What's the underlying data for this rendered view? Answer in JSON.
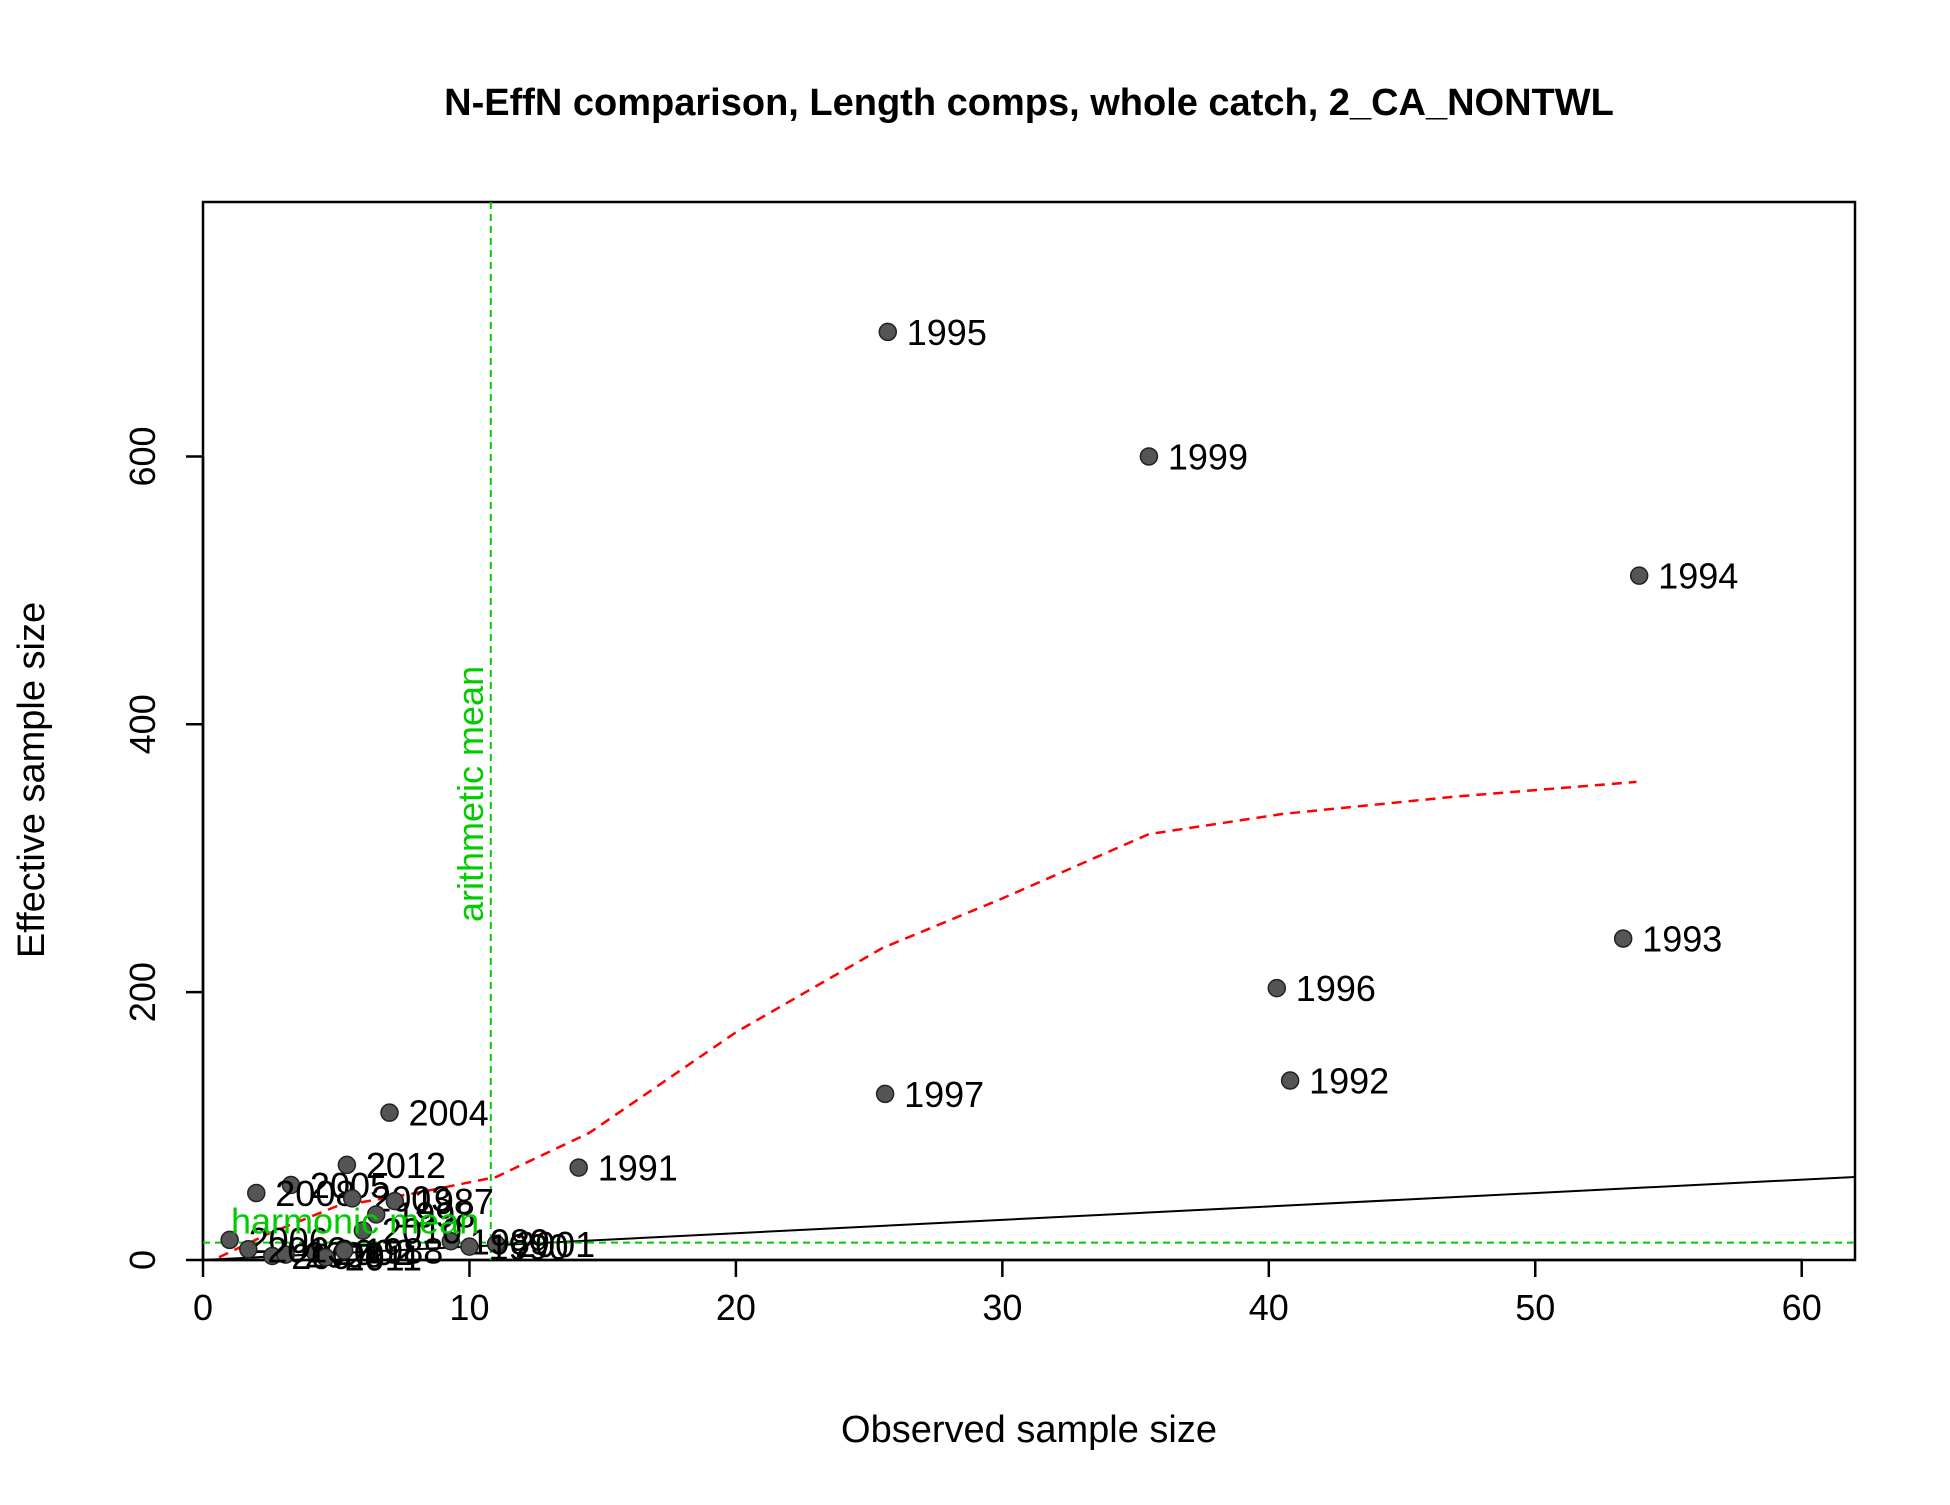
{
  "chart_data": {
    "type": "scatter",
    "title": "N-EffN comparison, Length comps, whole catch, 2_CA_NONTWL",
    "xlabel": "Observed sample size",
    "ylabel": "Effective sample size",
    "xlim": [
      0,
      62
    ],
    "ylim": [
      0,
      790
    ],
    "xticks": [
      0,
      10,
      20,
      30,
      40,
      50,
      60
    ],
    "yticks": [
      0,
      200,
      400,
      600
    ],
    "grid": false,
    "colors": {
      "points": "#555555",
      "point_outline": "#222222",
      "smoother": "#ff0000",
      "reference_lines": "#00cc00",
      "one_to_one": "#000000"
    },
    "points": [
      {
        "label": "1995",
        "x": 25.7,
        "y": 693
      },
      {
        "label": "1999",
        "x": 35.5,
        "y": 600
      },
      {
        "label": "1994",
        "x": 53.9,
        "y": 511
      },
      {
        "label": "1993",
        "x": 53.3,
        "y": 240
      },
      {
        "label": "1996",
        "x": 40.3,
        "y": 203
      },
      {
        "label": "1992",
        "x": 40.8,
        "y": 134
      },
      {
        "label": "1997",
        "x": 25.6,
        "y": 124
      },
      {
        "label": "1991",
        "x": 14.1,
        "y": 69
      },
      {
        "label": "2004",
        "x": 7.0,
        "y": 110
      },
      {
        "label": "2012",
        "x": 5.4,
        "y": 71
      },
      {
        "label": "2005",
        "x": 3.3,
        "y": 56
      },
      {
        "label": "2008",
        "x": 2.0,
        "y": 50
      },
      {
        "label": "2003",
        "x": 5.6,
        "y": 46
      },
      {
        "label": "1987",
        "x": 7.2,
        "y": 44
      },
      {
        "label": "1998",
        "x": 6.5,
        "y": 34
      },
      {
        "label": "2001",
        "x": 11.0,
        "y": 12
      },
      {
        "label": "1989",
        "x": 9.3,
        "y": 14
      },
      {
        "label": "1990",
        "x": 10.0,
        "y": 10
      },
      {
        "label": "2010",
        "x": 6.0,
        "y": 22
      },
      {
        "label": "2002",
        "x": 4.2,
        "y": 6
      },
      {
        "label": "2006",
        "x": 1.0,
        "y": 15
      },
      {
        "label": "2007",
        "x": 2.6,
        "y": 3
      },
      {
        "label": "2009",
        "x": 3.1,
        "y": 4
      },
      {
        "label": "2011",
        "x": 4.6,
        "y": 2
      },
      {
        "label": "2013",
        "x": 1.7,
        "y": 8
      },
      {
        "label": "1988",
        "x": 5.3,
        "y": 7
      }
    ],
    "smoother": [
      {
        "x": 0.6,
        "y": 2
      },
      {
        "x": 2.5,
        "y": 20
      },
      {
        "x": 5.0,
        "y": 40
      },
      {
        "x": 8.0,
        "y": 50
      },
      {
        "x": 11.0,
        "y": 62
      },
      {
        "x": 14.5,
        "y": 95
      },
      {
        "x": 20.0,
        "y": 170
      },
      {
        "x": 25.5,
        "y": 233
      },
      {
        "x": 30.0,
        "y": 270
      },
      {
        "x": 35.5,
        "y": 318
      },
      {
        "x": 40.5,
        "y": 333
      },
      {
        "x": 47.0,
        "y": 346
      },
      {
        "x": 53.8,
        "y": 357
      }
    ],
    "one_to_one": [
      [
        0,
        0
      ],
      [
        62,
        62
      ]
    ],
    "arithmetic_mean": {
      "label": "arithmetic mean",
      "x": 10.8
    },
    "harmonic_mean": {
      "label": "harmonic mean",
      "y": 13
    }
  }
}
